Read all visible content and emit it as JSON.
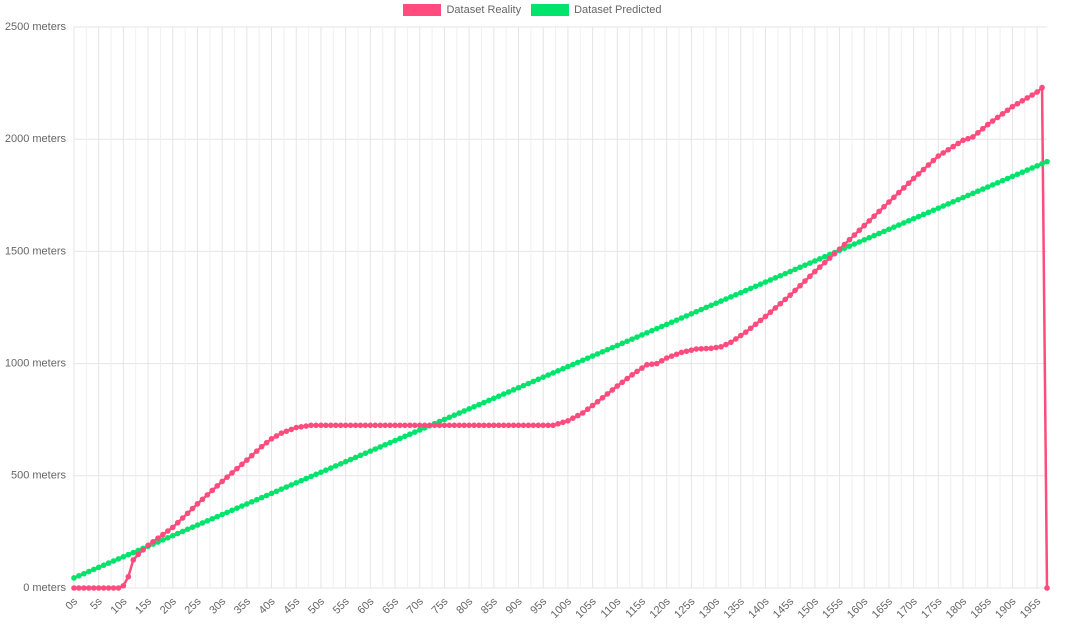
{
  "chart_data": {
    "type": "line",
    "title": "",
    "xlabel": "",
    "ylabel": "",
    "x_tick_labels": [
      "0s",
      "5s",
      "10s",
      "15s",
      "20s",
      "25s",
      "30s",
      "35s",
      "40s",
      "45s",
      "50s",
      "55s",
      "60s",
      "65s",
      "70s",
      "75s",
      "80s",
      "85s",
      "90s",
      "95s",
      "100s",
      "105s",
      "110s",
      "115s",
      "120s",
      "125s",
      "130s",
      "135s",
      "140s",
      "145s",
      "150s",
      "155s",
      "160s",
      "165s",
      "170s",
      "175s",
      "180s",
      "185s",
      "190s",
      "195s"
    ],
    "y_tick_labels": [
      "0 meters",
      "500 meters",
      "1000 meters",
      "1500 meters",
      "2000 meters",
      "2500 meters"
    ],
    "x_range": [
      0,
      197
    ],
    "ylim": [
      0,
      2500
    ],
    "grid": true,
    "legend_position": "top",
    "series": [
      {
        "name": "Dataset Reality",
        "color": "#ff4b7d",
        "points": [
          [
            0,
            0
          ],
          [
            9,
            0
          ],
          [
            10,
            10
          ],
          [
            11,
            50
          ],
          [
            12,
            125
          ],
          [
            13,
            150
          ],
          [
            15,
            190
          ],
          [
            20,
            270
          ],
          [
            25,
            375
          ],
          [
            30,
            475
          ],
          [
            35,
            570
          ],
          [
            38,
            630
          ],
          [
            40,
            665
          ],
          [
            42,
            690
          ],
          [
            45,
            715
          ],
          [
            48,
            725
          ],
          [
            50,
            725
          ],
          [
            60,
            725
          ],
          [
            70,
            725
          ],
          [
            80,
            725
          ],
          [
            90,
            725
          ],
          [
            97,
            725
          ],
          [
            100,
            745
          ],
          [
            103,
            780
          ],
          [
            106,
            830
          ],
          [
            110,
            900
          ],
          [
            113,
            950
          ],
          [
            116,
            995
          ],
          [
            118,
            1000
          ],
          [
            120,
            1025
          ],
          [
            123,
            1050
          ],
          [
            126,
            1065
          ],
          [
            129,
            1068
          ],
          [
            131,
            1075
          ],
          [
            133,
            1095
          ],
          [
            136,
            1140
          ],
          [
            140,
            1210
          ],
          [
            145,
            1305
          ],
          [
            150,
            1410
          ],
          [
            155,
            1510
          ],
          [
            160,
            1615
          ],
          [
            165,
            1720
          ],
          [
            170,
            1825
          ],
          [
            175,
            1925
          ],
          [
            180,
            1995
          ],
          [
            182,
            2010
          ],
          [
            185,
            2065
          ],
          [
            190,
            2145
          ],
          [
            195,
            2210
          ],
          [
            196,
            2230
          ],
          [
            197,
            0
          ]
        ]
      },
      {
        "name": "Dataset Predicted",
        "color": "#00e46c",
        "points": [
          [
            0,
            45
          ],
          [
            197,
            1900
          ]
        ]
      }
    ]
  }
}
